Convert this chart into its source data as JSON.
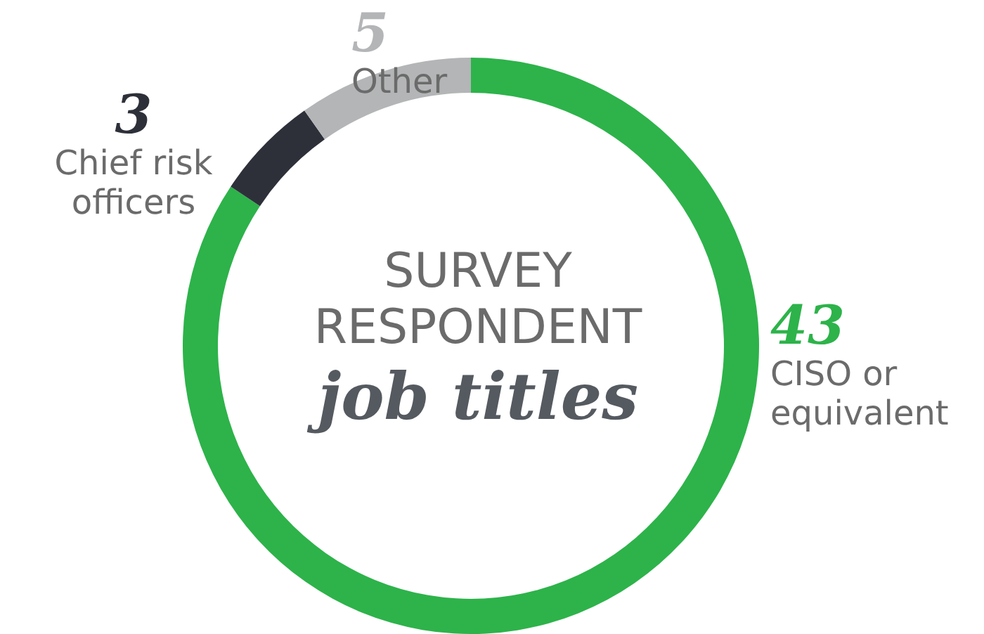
{
  "chart_data": {
    "type": "donut",
    "title": "SURVEY\nRESPONDENT",
    "subtitle": "job titles",
    "categories": [
      "CISO or\nequivalent",
      "Chief risk\nofficers",
      "Other"
    ],
    "values": [
      43,
      3,
      5
    ],
    "colors": [
      "#2db34a",
      "#2e3039",
      "#b3b5b6"
    ],
    "data_labels": true,
    "legend": false
  }
}
